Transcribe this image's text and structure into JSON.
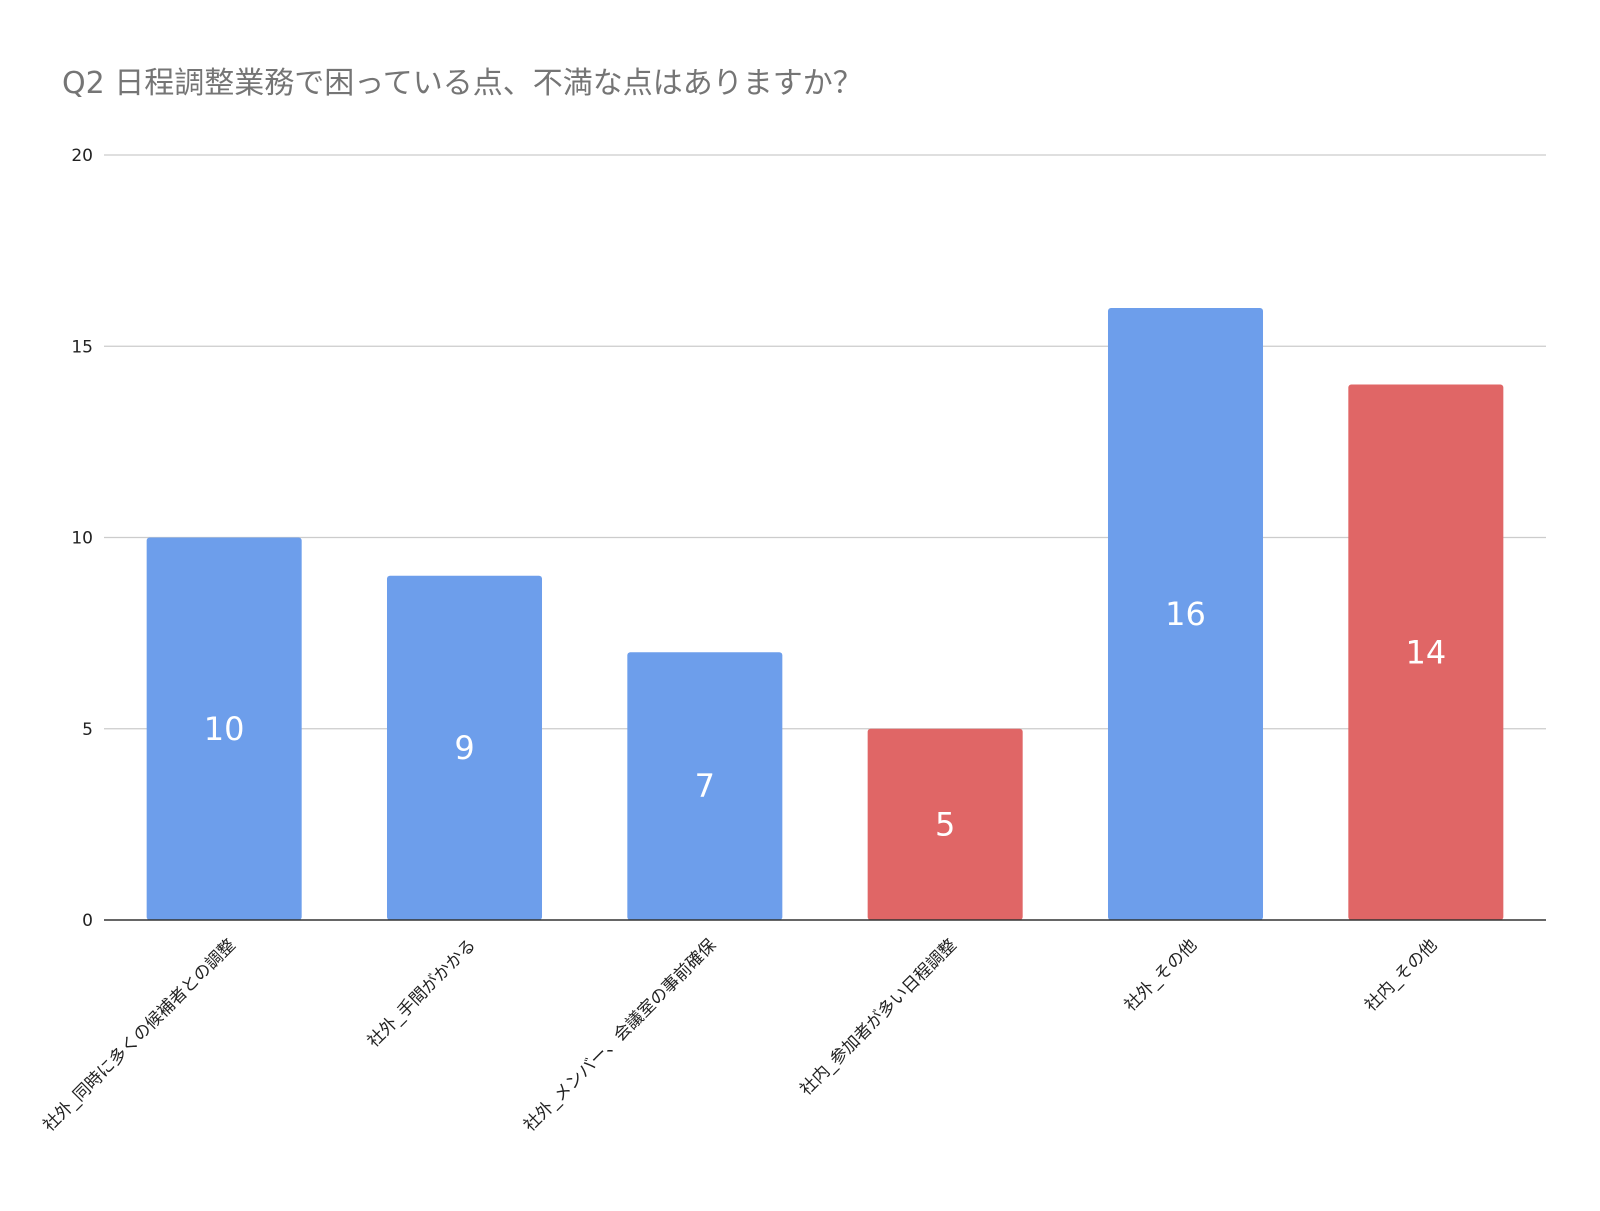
{
  "chart_data": {
    "type": "bar",
    "title": "Q2 日程調整業務で困っている点、不満な点はありますか？",
    "xlabel": "",
    "ylabel": "",
    "ylim": [
      0,
      20
    ],
    "yticks": [
      0,
      5,
      10,
      15,
      20
    ],
    "grid": true,
    "categories": [
      "社外_同時に多くの候補者との調整",
      "社外_手間がかかる",
      "社外_メンバー、会議室の事前確保",
      "社内_参加者が多い日程調整",
      "社外_その他",
      "社内_その他"
    ],
    "values": [
      10,
      9,
      7,
      5,
      16,
      14
    ],
    "bar_colors": [
      "#6d9eeb",
      "#6d9eeb",
      "#6d9eeb",
      "#e06666",
      "#6d9eeb",
      "#e06666"
    ],
    "data_labels": true
  }
}
